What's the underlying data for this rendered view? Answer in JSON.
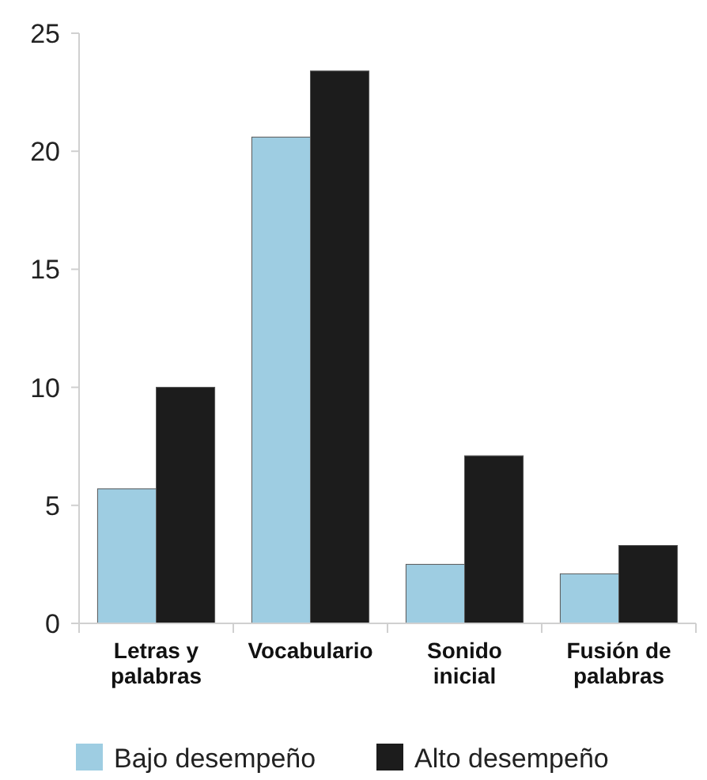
{
  "chart_data": {
    "type": "bar",
    "categories": [
      "Letras y palabras",
      "Vocabulario",
      "Sonido inicial",
      "Fusión de palabras"
    ],
    "series": [
      {
        "name": "Bajo desempeño",
        "color": "#9ecde2",
        "values": [
          5.7,
          20.6,
          2.5,
          2.1
        ]
      },
      {
        "name": "Alto desempeño",
        "color": "#1c1c1c",
        "values": [
          10.0,
          23.4,
          7.1,
          3.3
        ]
      }
    ],
    "ylim": [
      0,
      25
    ],
    "yticks": [
      0,
      5,
      10,
      15,
      20,
      25
    ],
    "grid": false,
    "legend": "bottom"
  }
}
